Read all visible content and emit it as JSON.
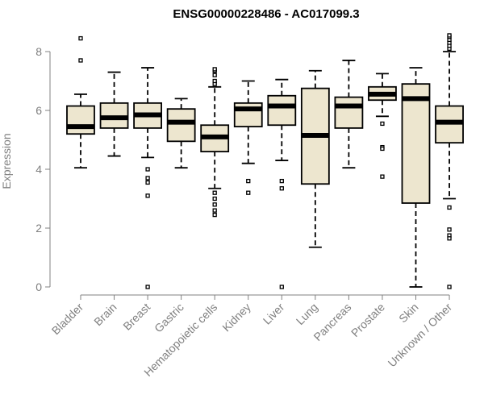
{
  "chart_data": {
    "type": "box",
    "title": "ENSG00000228486 - AC017099.3",
    "xlabel": "",
    "ylabel": "Expression",
    "ylim": [
      0,
      8.6
    ],
    "yticks": [
      0,
      2,
      4,
      6,
      8
    ],
    "grid": false,
    "colors": {
      "box_fill": "#EDE6CF",
      "stroke": "#000000",
      "axis": "#808080"
    },
    "categories": [
      "Bladder",
      "Brain",
      "Breast",
      "Gastric",
      "Hematopoietic cells",
      "Kidney",
      "Liver",
      "Lung",
      "Pancreas",
      "Prostate",
      "Skin",
      "Unknown / Other"
    ],
    "boxes": [
      {
        "category": "Bladder",
        "whisker_low": 4.05,
        "q1": 5.2,
        "median": 5.45,
        "q3": 6.15,
        "whisker_high": 6.55,
        "outliers": [
          7.7,
          8.45
        ]
      },
      {
        "category": "Brain",
        "whisker_low": 4.45,
        "q1": 5.4,
        "median": 5.75,
        "q3": 6.25,
        "whisker_high": 7.3,
        "outliers": []
      },
      {
        "category": "Breast",
        "whisker_low": 4.4,
        "q1": 5.4,
        "median": 5.85,
        "q3": 6.25,
        "whisker_high": 7.45,
        "outliers": [
          4.0,
          3.7,
          3.55,
          3.1,
          0.0
        ]
      },
      {
        "category": "Gastric",
        "whisker_low": 4.05,
        "q1": 4.95,
        "median": 5.6,
        "q3": 6.05,
        "whisker_high": 6.4,
        "outliers": []
      },
      {
        "category": "Hematopoietic cells",
        "whisker_low": 3.35,
        "q1": 4.6,
        "median": 5.1,
        "q3": 5.5,
        "whisker_high": 6.8,
        "outliers": [
          6.9,
          7.0,
          7.2,
          7.35,
          7.4,
          3.2,
          3.0,
          2.8,
          2.6,
          2.45
        ]
      },
      {
        "category": "Kidney",
        "whisker_low": 4.2,
        "q1": 5.45,
        "median": 6.05,
        "q3": 6.25,
        "whisker_high": 7.0,
        "outliers": [
          3.6,
          3.2
        ]
      },
      {
        "category": "Liver",
        "whisker_low": 4.3,
        "q1": 5.5,
        "median": 6.15,
        "q3": 6.5,
        "whisker_high": 7.05,
        "outliers": [
          3.6,
          3.35,
          0.0
        ]
      },
      {
        "category": "Lung",
        "whisker_low": 1.35,
        "q1": 3.5,
        "median": 5.15,
        "q3": 6.75,
        "whisker_high": 7.35,
        "outliers": []
      },
      {
        "category": "Pancreas",
        "whisker_low": 4.05,
        "q1": 5.4,
        "median": 6.15,
        "q3": 6.45,
        "whisker_high": 7.7,
        "outliers": []
      },
      {
        "category": "Prostate",
        "whisker_low": 5.8,
        "q1": 6.35,
        "median": 6.55,
        "q3": 6.8,
        "whisker_high": 7.25,
        "outliers": [
          5.55,
          4.75,
          4.7,
          3.75
        ]
      },
      {
        "category": "Skin",
        "whisker_low": 0.0,
        "q1": 2.85,
        "median": 6.4,
        "q3": 6.9,
        "whisker_high": 7.45,
        "outliers": []
      },
      {
        "category": "Unknown / Other",
        "whisker_low": 3.0,
        "q1": 4.9,
        "median": 5.6,
        "q3": 6.15,
        "whisker_high": 8.0,
        "outliers": [
          8.1,
          8.2,
          8.3,
          8.4,
          8.5,
          8.55,
          2.7,
          1.95,
          1.75,
          1.65,
          0.0
        ]
      }
    ]
  }
}
